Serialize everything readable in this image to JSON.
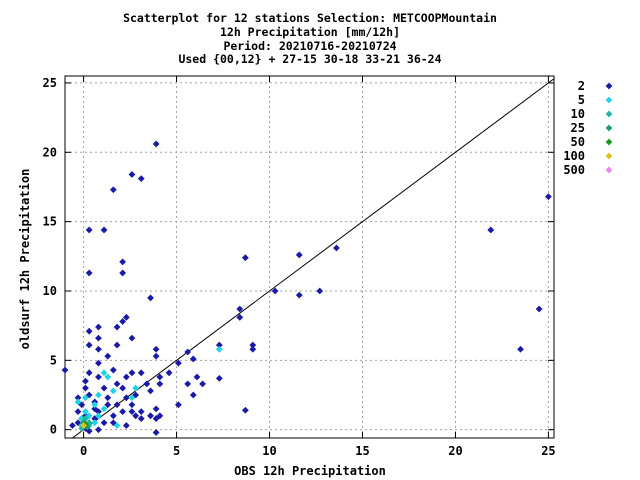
{
  "chart_data": {
    "type": "scatter",
    "title_lines": [
      "Scatterplot for   12 stations Selection: METCOOPMountain",
      "12h Precipitation [mm/12h]",
      "Period: 20210716-20210724",
      "Used {00,12} + 27-15 30-18 33-21 36-24"
    ],
    "xlabel": "OBS 12h Precipitation",
    "ylabel": "oldsurf 12h Precipitation",
    "xlim": [
      -1,
      25.3
    ],
    "ylim": [
      -0.6,
      25.5
    ],
    "x_ticks": [
      0,
      5,
      10,
      15,
      20,
      25
    ],
    "y_ticks": [
      0,
      5,
      10,
      15,
      20,
      25
    ],
    "grid": true,
    "legend_placement": "right",
    "diagonal_line": true,
    "series": [
      {
        "name": "2",
        "color": "#1a1aa6",
        "points": [
          [
            -1.0,
            4.3
          ],
          [
            3.9,
            20.6
          ],
          [
            1.6,
            17.3
          ],
          [
            2.6,
            18.4
          ],
          [
            3.1,
            18.1
          ],
          [
            0.3,
            14.4
          ],
          [
            1.1,
            14.4
          ],
          [
            2.1,
            12.1
          ],
          [
            2.1,
            11.3
          ],
          [
            0.3,
            11.3
          ],
          [
            3.6,
            9.5
          ],
          [
            2.3,
            8.1
          ],
          [
            2.1,
            7.8
          ],
          [
            1.8,
            7.4
          ],
          [
            0.8,
            7.4
          ],
          [
            0.3,
            7.1
          ],
          [
            0.8,
            6.6
          ],
          [
            0.3,
            6.1
          ],
          [
            2.6,
            6.6
          ],
          [
            3.9,
            5.8
          ],
          [
            3.9,
            5.3
          ],
          [
            1.3,
            5.3
          ],
          [
            0.8,
            5.8
          ],
          [
            1.8,
            6.1
          ],
          [
            0.8,
            4.8
          ],
          [
            1.6,
            4.3
          ],
          [
            2.6,
            4.1
          ],
          [
            3.1,
            4.1
          ],
          [
            2.3,
            3.8
          ],
          [
            0.8,
            3.8
          ],
          [
            1.8,
            3.3
          ],
          [
            2.1,
            3.0
          ],
          [
            3.4,
            3.3
          ],
          [
            3.6,
            2.8
          ],
          [
            4.1,
            3.8
          ],
          [
            4.1,
            3.3
          ],
          [
            4.6,
            4.1
          ],
          [
            5.1,
            4.8
          ],
          [
            5.6,
            5.6
          ],
          [
            5.9,
            5.1
          ],
          [
            6.1,
            3.8
          ],
          [
            5.6,
            3.3
          ],
          [
            6.4,
            3.3
          ],
          [
            5.9,
            2.5
          ],
          [
            5.1,
            1.8
          ],
          [
            4.1,
            1.0
          ],
          [
            3.9,
            1.5
          ],
          [
            3.6,
            1.0
          ],
          [
            3.9,
            0.8
          ],
          [
            3.9,
            -0.2
          ],
          [
            3.1,
            1.3
          ],
          [
            2.8,
            1.0
          ],
          [
            2.6,
            1.8
          ],
          [
            2.8,
            2.5
          ],
          [
            1.8,
            1.8
          ],
          [
            2.1,
            1.3
          ],
          [
            1.6,
            1.0
          ],
          [
            0.8,
            1.3
          ],
          [
            1.3,
            2.3
          ],
          [
            0.6,
            2.0
          ],
          [
            0.3,
            2.5
          ],
          [
            0.1,
            3.0
          ],
          [
            0.1,
            3.5
          ],
          [
            -0.3,
            2.3
          ],
          [
            -0.1,
            1.8
          ],
          [
            0.6,
            0.8
          ],
          [
            0.3,
            0.5
          ],
          [
            -0.3,
            0.5
          ],
          [
            -0.6,
            0.3
          ],
          [
            0.1,
            0.1
          ],
          [
            1.6,
            0.5
          ],
          [
            2.3,
            0.3
          ],
          [
            0.8,
            0.0
          ],
          [
            0.3,
            -0.1
          ],
          [
            -0.1,
            0.8
          ],
          [
            0.6,
            1.5
          ],
          [
            0.1,
            1.0
          ],
          [
            -0.3,
            1.3
          ],
          [
            1.1,
            0.5
          ],
          [
            1.3,
            1.8
          ],
          [
            2.6,
            1.3
          ],
          [
            3.1,
            0.8
          ],
          [
            1.1,
            3.0
          ],
          [
            0.3,
            4.1
          ],
          [
            2.3,
            2.3
          ],
          [
            7.3,
            6.1
          ],
          [
            7.3,
            3.7
          ],
          [
            8.4,
            8.7
          ],
          [
            8.4,
            8.1
          ],
          [
            8.7,
            12.4
          ],
          [
            9.1,
            6.1
          ],
          [
            9.1,
            5.8
          ],
          [
            8.7,
            1.4
          ],
          [
            10.3,
            10.0
          ],
          [
            11.6,
            12.6
          ],
          [
            11.6,
            9.7
          ],
          [
            12.7,
            10.0
          ],
          [
            13.6,
            13.1
          ],
          [
            21.9,
            14.4
          ],
          [
            23.5,
            5.8
          ],
          [
            24.5,
            8.7
          ],
          [
            25.0,
            16.8
          ]
        ]
      },
      {
        "name": "5",
        "color": "#22d3e6",
        "points": [
          [
            0.1,
            1.3
          ],
          [
            0.3,
            1.0
          ],
          [
            -0.1,
            0.8
          ],
          [
            0.1,
            2.3
          ],
          [
            -0.3,
            2.0
          ],
          [
            0.6,
            1.8
          ],
          [
            0.8,
            2.5
          ],
          [
            1.3,
            3.8
          ],
          [
            1.1,
            4.1
          ],
          [
            0.8,
            1.0
          ],
          [
            1.8,
            0.3
          ],
          [
            1.1,
            1.5
          ],
          [
            0.3,
            0.3
          ],
          [
            1.6,
            2.8
          ],
          [
            2.6,
            2.3
          ],
          [
            2.8,
            3.0
          ],
          [
            7.3,
            5.8
          ],
          [
            -0.1,
            0.3
          ],
          [
            0.6,
            0.5
          ]
        ]
      },
      {
        "name": "10",
        "color": "#20b5a4",
        "points": [
          [
            0.1,
            0.8
          ],
          [
            0.3,
            0.5
          ],
          [
            -0.1,
            0.1
          ],
          [
            0.1,
            0.3
          ]
        ]
      },
      {
        "name": "25",
        "color": "#1e9e60",
        "points": [
          [
            0.0,
            0.5
          ],
          [
            0.2,
            0.2
          ]
        ]
      },
      {
        "name": "50",
        "color": "#1a9a1a",
        "points": [
          [
            0.1,
            0.4
          ]
        ]
      },
      {
        "name": "100",
        "color": "#e0c01a",
        "points": [
          [
            0.0,
            0.3
          ]
        ]
      },
      {
        "name": "500",
        "color": "#ee82ee",
        "points": []
      }
    ]
  }
}
